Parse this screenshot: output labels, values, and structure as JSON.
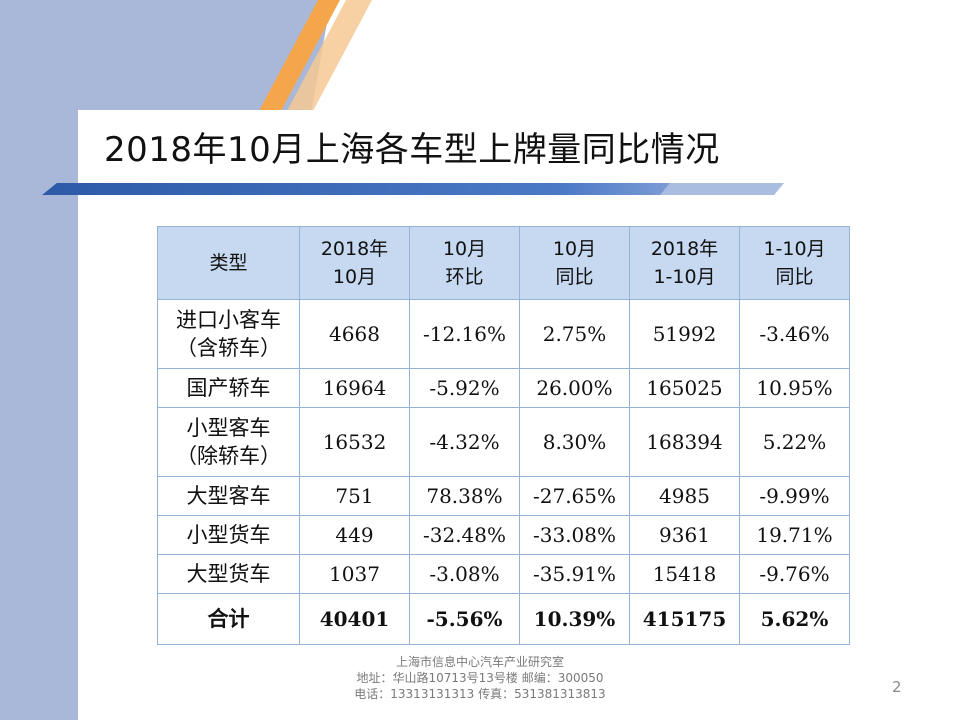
{
  "slide": {
    "title": "2018年10月上海各车型上牌量同比情况",
    "page_number": "2",
    "colors": {
      "accent_blue": "#2d5aa8",
      "panel": "#a9b8d8",
      "orange": "#f6a64a",
      "header_fill": "#c6d9f1"
    }
  },
  "table": {
    "headers": [
      [
        "类型"
      ],
      [
        "2018年",
        "10月"
      ],
      [
        "10月",
        "环比"
      ],
      [
        "10月",
        "同比"
      ],
      [
        "2018年",
        "1-10月"
      ],
      [
        "1-10月",
        "同比"
      ]
    ],
    "rows": [
      {
        "type": [
          "进口小客车",
          "（含轿车）"
        ],
        "cells": [
          "4668",
          "-12.16%",
          "2.75%",
          "51992",
          "-3.46%"
        ]
      },
      {
        "type": [
          "国产轿车"
        ],
        "cells": [
          "16964",
          "-5.92%",
          "26.00%",
          "165025",
          "10.95%"
        ]
      },
      {
        "type": [
          "小型客车",
          "（除轿车）"
        ],
        "cells": [
          "16532",
          "-4.32%",
          "8.30%",
          "168394",
          "5.22%"
        ]
      },
      {
        "type": [
          "大型客车"
        ],
        "cells": [
          "751",
          "78.38%",
          "-27.65%",
          "4985",
          "-9.99%"
        ]
      },
      {
        "type": [
          "小型货车"
        ],
        "cells": [
          "449",
          "-32.48%",
          "-33.08%",
          "9361",
          "19.71%"
        ]
      },
      {
        "type": [
          "大型货车"
        ],
        "cells": [
          "1037",
          "-3.08%",
          "-35.91%",
          "15418",
          "-9.76%"
        ]
      }
    ],
    "total": {
      "type": [
        "合计"
      ],
      "cells": [
        "40401",
        "-5.56%",
        "10.39%",
        "415175",
        "5.62%"
      ]
    }
  },
  "footer": {
    "org": "上海市信息中心汽车产业研究室",
    "address": "地址：华山路10713号13号楼    邮编：300050",
    "contact": "电话：13313131313   传真：531381313813"
  }
}
